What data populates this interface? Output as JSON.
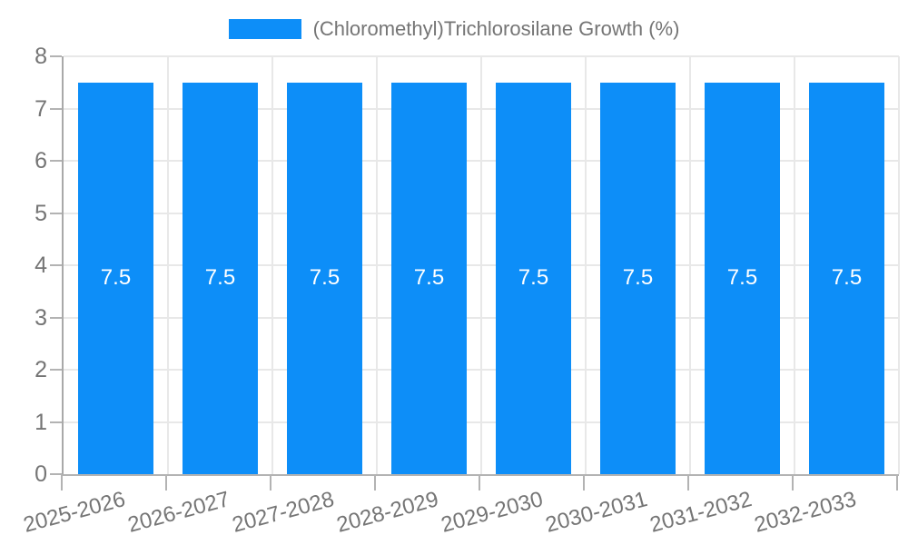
{
  "chart_data": {
    "type": "bar",
    "title": "",
    "legend": {
      "label": "(Chloromethyl)Trichlorosilane Growth (%)",
      "position": "top"
    },
    "categories": [
      "2025-2026",
      "2026-2027",
      "2027-2028",
      "2028-2029",
      "2029-2030",
      "2030-2031",
      "2031-2032",
      "2032-2033"
    ],
    "series": [
      {
        "name": "(Chloromethyl)Trichlorosilane Growth (%)",
        "values": [
          7.5,
          7.5,
          7.5,
          7.5,
          7.5,
          7.5,
          7.5,
          7.5
        ]
      }
    ],
    "value_labels": [
      "7.5",
      "7.5",
      "7.5",
      "7.5",
      "7.5",
      "7.5",
      "7.5",
      "7.5"
    ],
    "xlabel": "",
    "ylabel": "",
    "ylim": [
      0,
      8
    ],
    "yticks": [
      0,
      1,
      2,
      3,
      4,
      5,
      6,
      7,
      8
    ],
    "grid": true,
    "legend_position": "top"
  },
  "colors": {
    "bar": "#0d8ef8",
    "axis": "#a9a9a9",
    "tick": "#b3b3b3",
    "grid": "#e8e8e8",
    "text": "#757575",
    "bar_label": "#ffffff",
    "background": "#ffffff"
  }
}
